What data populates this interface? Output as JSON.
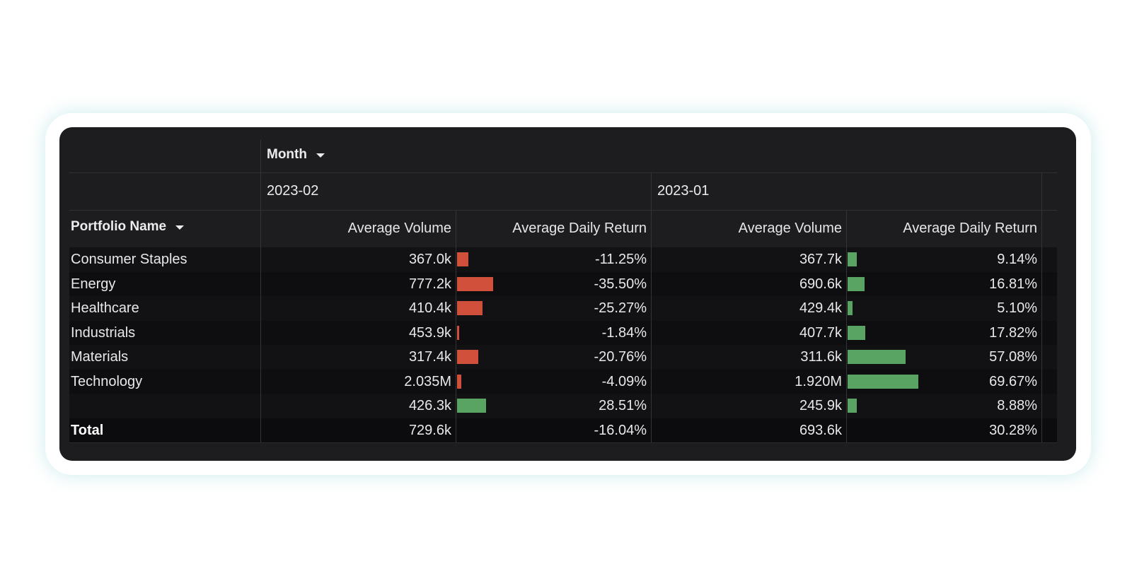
{
  "column_header": {
    "label": "Month"
  },
  "row_header": {
    "label": "Portfolio Name"
  },
  "periods": [
    "2023-02",
    "2023-01"
  ],
  "measures": [
    "Average Volume",
    "Average Daily Return"
  ],
  "colors": {
    "negative": "#d0503c",
    "positive": "#5aa463"
  },
  "rows": [
    {
      "name": "Consumer Staples",
      "values": [
        {
          "volume": "367.0k",
          "return": "-11.25%",
          "return_value": -11.25
        },
        {
          "volume": "367.7k",
          "return": "9.14%",
          "return_value": 9.14
        }
      ]
    },
    {
      "name": "Energy",
      "values": [
        {
          "volume": "777.2k",
          "return": "-35.50%",
          "return_value": -35.5
        },
        {
          "volume": "690.6k",
          "return": "16.81%",
          "return_value": 16.81
        }
      ]
    },
    {
      "name": "Healthcare",
      "values": [
        {
          "volume": "410.4k",
          "return": "-25.27%",
          "return_value": -25.27
        },
        {
          "volume": "429.4k",
          "return": "5.10%",
          "return_value": 5.1
        }
      ]
    },
    {
      "name": "Industrials",
      "values": [
        {
          "volume": "453.9k",
          "return": "-1.84%",
          "return_value": -1.84
        },
        {
          "volume": "407.7k",
          "return": "17.82%",
          "return_value": 17.82
        }
      ]
    },
    {
      "name": "Materials",
      "values": [
        {
          "volume": "317.4k",
          "return": "-20.76%",
          "return_value": -20.76
        },
        {
          "volume": "311.6k",
          "return": "57.08%",
          "return_value": 57.08
        }
      ]
    },
    {
      "name": "Technology",
      "values": [
        {
          "volume": "2.035M",
          "return": "-4.09%",
          "return_value": -4.09
        },
        {
          "volume": "1.920M",
          "return": "69.67%",
          "return_value": 69.67
        }
      ]
    },
    {
      "name": "",
      "values": [
        {
          "volume": "426.3k",
          "return": "28.51%",
          "return_value": 28.51
        },
        {
          "volume": "245.9k",
          "return": "8.88%",
          "return_value": 8.88
        }
      ]
    }
  ],
  "total": {
    "name": "Total",
    "values": [
      {
        "volume": "729.6k",
        "return": "-16.04%"
      },
      {
        "volume": "693.6k",
        "return": "30.28%"
      }
    ]
  }
}
